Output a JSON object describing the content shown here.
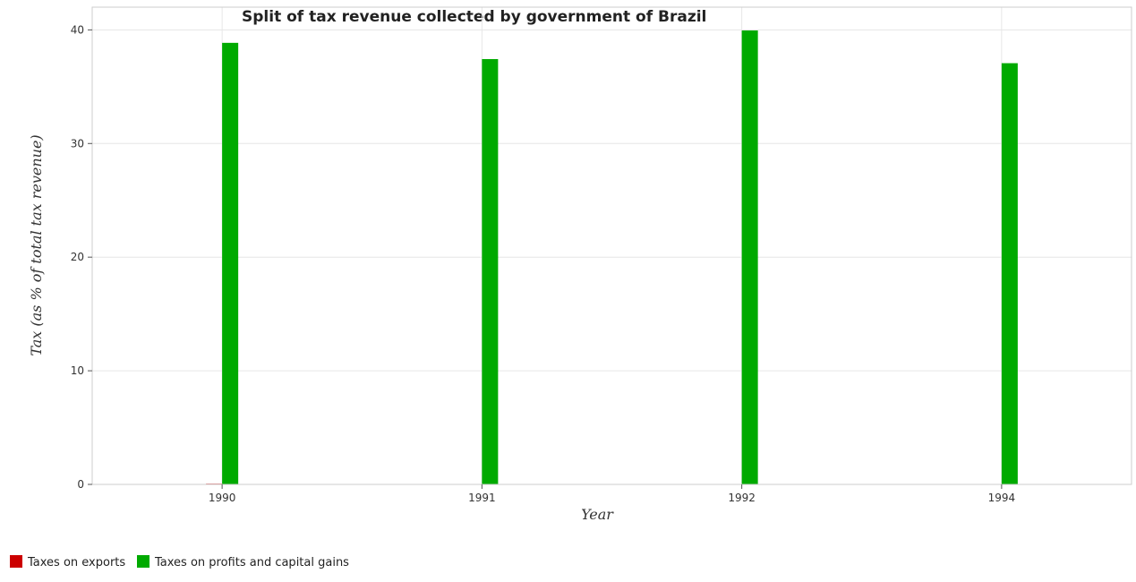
{
  "chart_data": {
    "type": "bar",
    "title": "Split of tax revenue collected by government of Brazil",
    "xlabel": "Year",
    "ylabel": "Tax (as % of total tax revenue)",
    "categories": [
      "1990",
      "1991",
      "1992",
      "1994"
    ],
    "series": [
      {
        "name": "Taxes on exports",
        "color": "#cc0000",
        "values": [
          0.06,
          0.01,
          0.01,
          0.01
        ]
      },
      {
        "name": "Taxes on profits and capital gains",
        "color": "#00aa00",
        "values": [
          38.86,
          37.43,
          39.95,
          37.07
        ]
      }
    ],
    "ylim": [
      0,
      42
    ],
    "yticks": [
      0,
      10,
      20,
      30,
      40
    ],
    "grid": true,
    "legend_position": "bottom-left"
  }
}
